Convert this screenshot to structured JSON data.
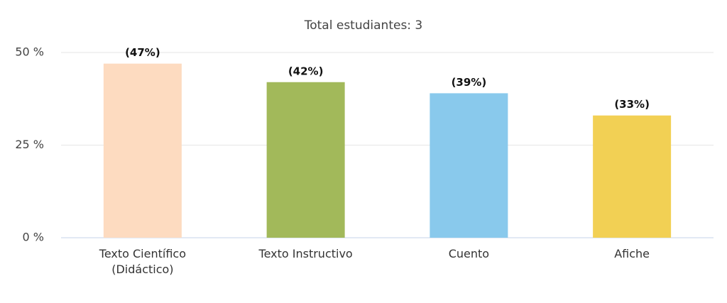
{
  "chart_data": {
    "type": "bar",
    "title": "Total estudiantes: 3",
    "categories": [
      "Texto Científico (Didáctico)",
      "Texto Instructivo",
      "Cuento",
      "Afiche"
    ],
    "values": [
      47,
      42,
      39,
      33
    ],
    "value_labels": [
      "(47%)",
      "(42%)",
      "(39%)",
      "(33%)"
    ],
    "colors": [
      "#fddbc0",
      "#a2b95a",
      "#89c9ec",
      "#f2d054"
    ],
    "ylim": [
      0,
      50
    ],
    "yticks": [
      {
        "value": 0,
        "label": "0 %"
      },
      {
        "value": 25,
        "label": "25 %"
      },
      {
        "value": 50,
        "label": "50 %"
      }
    ],
    "grid": true
  }
}
